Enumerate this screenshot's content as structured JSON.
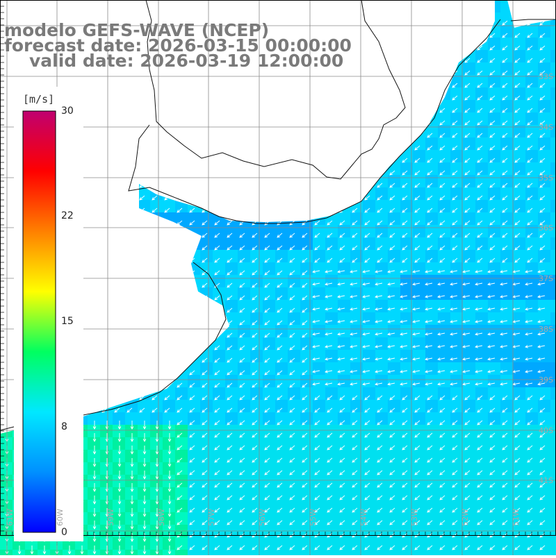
{
  "title": {
    "model": "modelo GEFS-WAVE (NCEP)",
    "forecast": "forecast date: 2026-03-15 00:00:00",
    "valid": "valid date: 2026-03-19 12:00:00"
  },
  "colorbar": {
    "unit": "[m/s]",
    "ticks": [
      "30",
      "22",
      "15",
      "8",
      "0"
    ],
    "tick_values": [
      30,
      22,
      15,
      8,
      0
    ],
    "min": 0,
    "max": 30,
    "colors": [
      "#0000ff",
      "#0090ff",
      "#00e8ff",
      "#00ff60",
      "#ffff00",
      "#ff8000",
      "#ff0000",
      "#c00070"
    ]
  },
  "map": {
    "variable": "wind speed",
    "units": "m/s",
    "dominant_direction": "southwest",
    "land_color": "#ffffff",
    "grid_color": "#888888",
    "longitude_labels": [
      "61W",
      "60W",
      "59W",
      "58W",
      "57W",
      "56W",
      "55W",
      "54W",
      "53W",
      "52W",
      "51W"
    ],
    "latitude_labels": [
      "33S",
      "34S",
      "35S",
      "36S",
      "37S",
      "38S",
      "39S",
      "40S",
      "41S"
    ]
  }
}
